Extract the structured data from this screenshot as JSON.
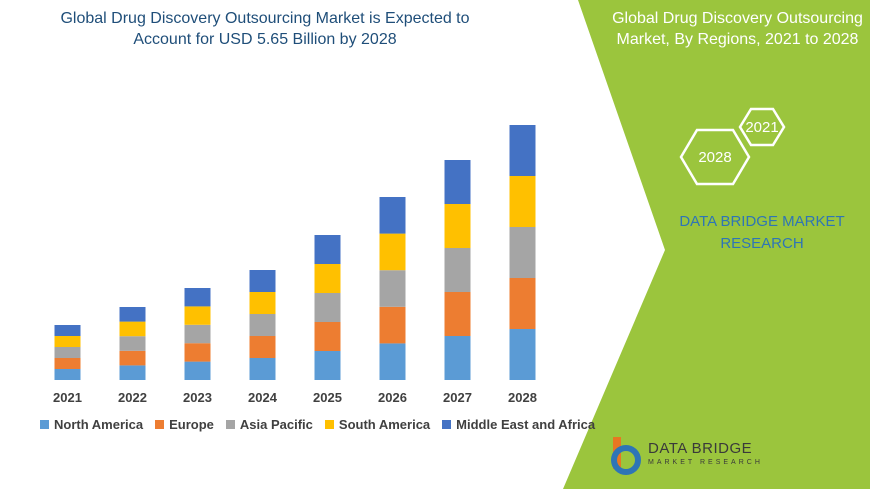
{
  "chart_data": {
    "type": "bar",
    "stacked": true,
    "title": "Global Drug Discovery Outsourcing Market is Expected to Account for USD 5.65 Billion by 2028",
    "categories": [
      "2021",
      "2022",
      "2023",
      "2024",
      "2025",
      "2026",
      "2027",
      "2028"
    ],
    "series": [
      {
        "name": "North America",
        "color": "#5b9bd5",
        "values": [
          11,
          14.6,
          18.4,
          22,
          29,
          36.6,
          44,
          51
        ]
      },
      {
        "name": "Europe",
        "color": "#ed7d31",
        "values": [
          11,
          14.6,
          18.4,
          22,
          29,
          36.6,
          44,
          51
        ]
      },
      {
        "name": "Asia Pacific",
        "color": "#a5a5a5",
        "values": [
          11,
          14.6,
          18.4,
          22,
          29,
          36.6,
          44,
          51
        ]
      },
      {
        "name": "South America",
        "color": "#ffc000",
        "values": [
          11,
          14.6,
          18.4,
          22,
          29,
          36.6,
          44,
          51
        ]
      },
      {
        "name": "Middle East and Africa",
        "color": "#4472c4",
        "values": [
          11,
          14.6,
          18.4,
          22,
          29,
          36.6,
          44,
          51
        ]
      }
    ],
    "ylim": [
      0,
      260
    ]
  },
  "panel": {
    "title": "Global Drug Discovery Outsourcing Market, By Regions, 2021 to 2028",
    "hexagons": [
      "2021",
      "2028"
    ],
    "brand": "DATA BRIDGE MARKET RESEARCH"
  },
  "logo": {
    "name": "DATA BRIDGE",
    "tagline": "MARKET RESEARCH"
  }
}
